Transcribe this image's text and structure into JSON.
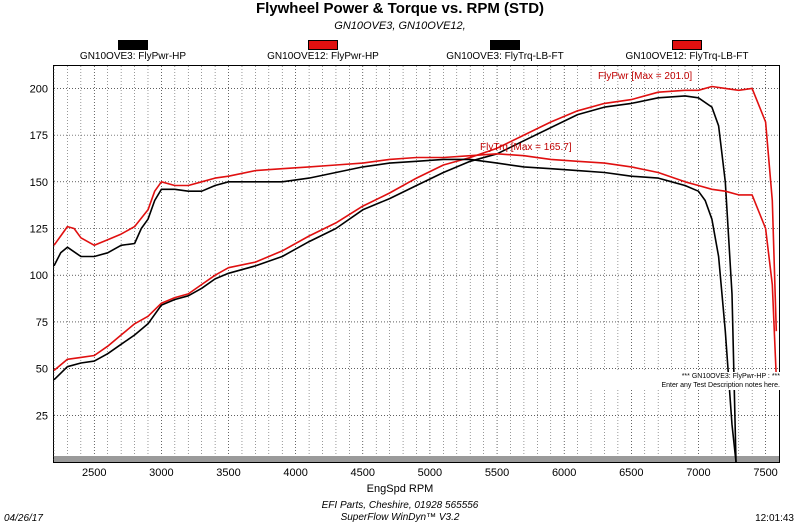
{
  "title": "Flywheel Power & Torque vs. RPM (STD)",
  "subtitle": "GN10OVE3, GN10OVE12,",
  "legend": [
    {
      "label": "GN10OVE3: FlyPwr-HP",
      "color": "#000000"
    },
    {
      "label": "GN10OVE12: FlyPwr-HP",
      "color": "#e01010"
    },
    {
      "label": "GN10OVE3: FlyTrq-LB-FT",
      "color": "#000000"
    },
    {
      "label": "GN10OVE12: FlyTrq-LB-FT",
      "color": "#e01010"
    }
  ],
  "annotations": {
    "pwr_max": "FlyPwr [Max = 201.0]",
    "trq_max": "FlyTrq [Max = 165.7]",
    "note_line1": "*** GN10OVE3: FlyPwr-HP : ***",
    "note_line2": "Enter any Test Description notes here."
  },
  "footer": {
    "date": "04/26/17",
    "time": "12:01:43",
    "company": "EFI Parts, Cheshire, 01928 565556",
    "software": "SuperFlow WinDyn™ V3.2"
  },
  "chart_data": {
    "type": "line",
    "title": "Flywheel Power & Torque vs. RPM (STD)",
    "xlabel": "EngSpd RPM",
    "ylabel": "",
    "xlim": [
      2200,
      7600
    ],
    "ylim": [
      0,
      212
    ],
    "xticks": [
      2500,
      3000,
      3500,
      4000,
      4500,
      5000,
      5500,
      6000,
      6500,
      7000,
      7500
    ],
    "yticks": [
      25,
      50,
      75,
      100,
      125,
      150,
      175,
      200
    ],
    "grid": true,
    "series": [
      {
        "name": "GN10OVE3: FlyPwr-HP",
        "color": "#000000",
        "x": [
          2200,
          2300,
          2400,
          2500,
          2600,
          2700,
          2800,
          2900,
          3000,
          3100,
          3200,
          3300,
          3400,
          3500,
          3700,
          3900,
          4100,
          4300,
          4500,
          4700,
          4900,
          5100,
          5300,
          5500,
          5700,
          5900,
          6100,
          6300,
          6500,
          6700,
          6900,
          7000,
          7100,
          7150,
          7200,
          7250,
          7280
        ],
        "y": [
          44,
          51,
          53,
          54,
          58,
          63,
          68,
          74,
          84,
          87,
          89,
          93,
          98,
          101,
          105,
          110,
          118,
          125,
          135,
          141,
          148,
          155,
          161,
          165,
          172,
          179,
          186,
          190,
          192,
          195,
          196,
          195,
          190,
          180,
          150,
          90,
          0
        ]
      },
      {
        "name": "GN10OVE12: FlyPwr-HP",
        "color": "#e01010",
        "x": [
          2200,
          2300,
          2400,
          2500,
          2600,
          2700,
          2800,
          2900,
          3000,
          3100,
          3200,
          3300,
          3400,
          3500,
          3700,
          3900,
          4100,
          4300,
          4500,
          4700,
          4900,
          5100,
          5300,
          5500,
          5700,
          5900,
          6100,
          6300,
          6500,
          6700,
          6900,
          7000,
          7100,
          7200,
          7300,
          7400,
          7500,
          7550,
          7580
        ],
        "y": [
          49,
          55,
          56,
          57,
          62,
          68,
          74,
          78,
          85,
          88,
          90,
          95,
          100,
          104,
          107,
          113,
          121,
          128,
          137,
          144,
          152,
          159,
          163,
          168,
          175,
          182,
          188,
          192,
          194,
          198,
          199,
          199,
          201,
          200,
          199,
          200,
          182,
          140,
          70
        ]
      },
      {
        "name": "GN10OVE3: FlyTrq-LB-FT",
        "color": "#000000",
        "x": [
          2200,
          2250,
          2300,
          2400,
          2500,
          2600,
          2700,
          2800,
          2850,
          2900,
          2950,
          3000,
          3100,
          3200,
          3300,
          3400,
          3500,
          3700,
          3900,
          4100,
          4300,
          4500,
          4700,
          4900,
          5100,
          5300,
          5500,
          5700,
          5900,
          6100,
          6300,
          6500,
          6700,
          6800,
          6900,
          7000,
          7050,
          7100,
          7150,
          7200,
          7250,
          7280
        ],
        "y": [
          105,
          112,
          115,
          110,
          110,
          112,
          116,
          117,
          125,
          130,
          140,
          146,
          146,
          145,
          145,
          148,
          150,
          150,
          150,
          152,
          155,
          158,
          160,
          161,
          162,
          162,
          160,
          158,
          157,
          156,
          155,
          153,
          152,
          150,
          148,
          145,
          140,
          130,
          110,
          70,
          20,
          0
        ]
      },
      {
        "name": "GN10OVE12: FlyTrq-LB-FT",
        "color": "#e01010",
        "x": [
          2200,
          2250,
          2300,
          2350,
          2400,
          2500,
          2600,
          2700,
          2800,
          2900,
          2950,
          3000,
          3100,
          3200,
          3300,
          3400,
          3500,
          3700,
          3900,
          4100,
          4300,
          4500,
          4700,
          4900,
          5100,
          5300,
          5500,
          5700,
          5900,
          6100,
          6300,
          6500,
          6700,
          6900,
          7000,
          7100,
          7200,
          7300,
          7400,
          7500,
          7550,
          7580
        ],
        "y": [
          116,
          121,
          126,
          125,
          120,
          116,
          119,
          122,
          126,
          135,
          145,
          150,
          148,
          148,
          150,
          152,
          153,
          156,
          157,
          158,
          159,
          160,
          162,
          163,
          163,
          164,
          165,
          164,
          162,
          161,
          160,
          158,
          155,
          150,
          148,
          146,
          145,
          143,
          143,
          125,
          95,
          45
        ]
      }
    ]
  }
}
